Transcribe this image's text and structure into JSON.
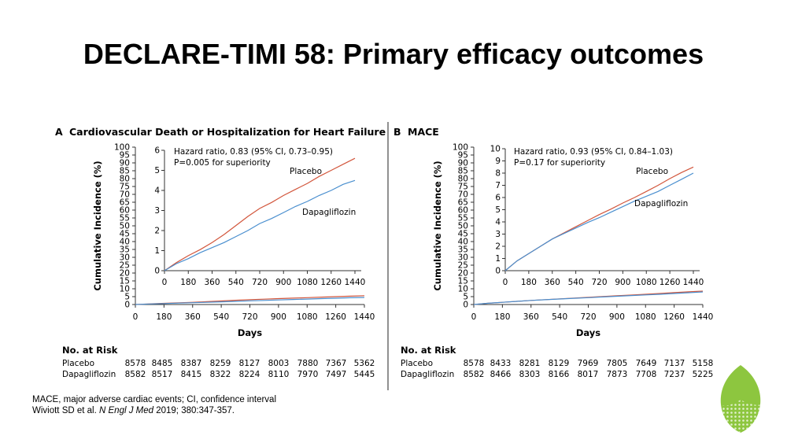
{
  "slide": {
    "title": "DECLARE-TIMI 58: Primary efficacy outcomes",
    "footnote1": "MACE, major adverse cardiac events; CI, confidence interval",
    "footnote2_pre": "Wiviott SD et al. ",
    "footnote2_journal": "N Engl J Med",
    "footnote2_post": " 2019; 380:347-357."
  },
  "colors": {
    "placebo": "#d2563c",
    "dapagliflozin": "#4a8fcf",
    "logo": "#8dc63f"
  },
  "chart_data": [
    {
      "type": "line",
      "panel_letter": "A",
      "title": "Cardiovascular Death or Hospitalization for Heart Failure",
      "xlabel": "Days",
      "ylabel": "Cumulative Incidence (%)",
      "xlim": [
        0,
        1440
      ],
      "ylim": [
        0,
        100
      ],
      "x_ticks": [
        0,
        180,
        360,
        540,
        720,
        900,
        1080,
        1260,
        1440
      ],
      "y_ticks": [
        0,
        5,
        10,
        15,
        20,
        25,
        30,
        35,
        40,
        45,
        50,
        55,
        60,
        65,
        70,
        75,
        80,
        85,
        90,
        95,
        100
      ],
      "inset": {
        "xlim": [
          0,
          1440
        ],
        "ylim": [
          0,
          6
        ],
        "x_ticks": [
          0,
          180,
          360,
          540,
          720,
          900,
          1080,
          1260,
          1440
        ],
        "y_ticks": [
          0,
          1,
          2,
          3,
          4,
          5,
          6
        ],
        "annotation": [
          "Hazard ratio, 0.83 (95% CI, 0.73–0.95)",
          "P=0.005 for superiority"
        ]
      },
      "series": [
        {
          "name": "Placebo",
          "x": [
            0,
            90,
            180,
            270,
            360,
            450,
            540,
            630,
            720,
            810,
            900,
            990,
            1080,
            1170,
            1260,
            1350,
            1440
          ],
          "y": [
            0,
            0.4,
            0.75,
            1.05,
            1.4,
            1.8,
            2.25,
            2.7,
            3.1,
            3.4,
            3.75,
            4.05,
            4.35,
            4.7,
            5.0,
            5.3,
            5.6
          ]
        },
        {
          "name": "Dapagliflozin",
          "x": [
            0,
            90,
            180,
            270,
            360,
            450,
            540,
            630,
            720,
            810,
            900,
            990,
            1080,
            1170,
            1260,
            1350,
            1440
          ],
          "y": [
            0,
            0.35,
            0.6,
            0.9,
            1.15,
            1.4,
            1.7,
            2.0,
            2.35,
            2.6,
            2.9,
            3.2,
            3.45,
            3.75,
            4.0,
            4.3,
            4.5
          ]
        }
      ],
      "at_risk": {
        "header": "No. at Risk",
        "rows": [
          {
            "label": "Placebo",
            "values": [
              "8578",
              "8485",
              "8387",
              "8259",
              "8127",
              "8003",
              "7880",
              "7367",
              "5362"
            ]
          },
          {
            "label": "Dapagliflozin",
            "values": [
              "8582",
              "8517",
              "8415",
              "8322",
              "8224",
              "8110",
              "7970",
              "7497",
              "5445"
            ]
          }
        ]
      }
    },
    {
      "type": "line",
      "panel_letter": "B",
      "title": "MACE",
      "xlabel": "Days",
      "ylabel": "Cumulative Incidence (%)",
      "xlim": [
        0,
        1440
      ],
      "ylim": [
        0,
        100
      ],
      "x_ticks": [
        0,
        180,
        360,
        540,
        720,
        900,
        1080,
        1260,
        1440
      ],
      "y_ticks": [
        0,
        5,
        10,
        15,
        20,
        25,
        30,
        35,
        40,
        45,
        50,
        55,
        60,
        65,
        70,
        75,
        80,
        85,
        90,
        95,
        100
      ],
      "inset": {
        "xlim": [
          0,
          1440
        ],
        "ylim": [
          0,
          10
        ],
        "x_ticks": [
          0,
          180,
          360,
          540,
          720,
          900,
          1080,
          1260,
          1440
        ],
        "y_ticks": [
          0,
          1,
          2,
          3,
          4,
          5,
          6,
          7,
          8,
          9,
          10
        ],
        "annotation": [
          "Hazard ratio, 0.93 (95% CI, 0.84–1.03)",
          "P=0.17 for superiority"
        ]
      },
      "series": [
        {
          "name": "Placebo",
          "x": [
            0,
            90,
            180,
            270,
            360,
            450,
            540,
            630,
            720,
            810,
            900,
            990,
            1080,
            1170,
            1260,
            1350,
            1440
          ],
          "y": [
            0,
            0.8,
            1.4,
            2.0,
            2.6,
            3.1,
            3.6,
            4.1,
            4.6,
            5.05,
            5.55,
            6.0,
            6.5,
            7.0,
            7.55,
            8.05,
            8.5
          ]
        },
        {
          "name": "Dapagliflozin",
          "x": [
            0,
            90,
            180,
            270,
            360,
            450,
            540,
            630,
            720,
            810,
            900,
            990,
            1080,
            1170,
            1260,
            1350,
            1440
          ],
          "y": [
            0,
            0.8,
            1.4,
            2.0,
            2.6,
            3.05,
            3.5,
            3.95,
            4.35,
            4.8,
            5.25,
            5.7,
            6.1,
            6.5,
            7.0,
            7.5,
            8.0
          ]
        }
      ],
      "at_risk": {
        "header": "No. at Risk",
        "rows": [
          {
            "label": "Placebo",
            "values": [
              "8578",
              "8433",
              "8281",
              "8129",
              "7969",
              "7805",
              "7649",
              "7137",
              "5158"
            ]
          },
          {
            "label": "Dapagliflozin",
            "values": [
              "8582",
              "8466",
              "8303",
              "8166",
              "8017",
              "7873",
              "7708",
              "7237",
              "5225"
            ]
          }
        ]
      }
    }
  ]
}
